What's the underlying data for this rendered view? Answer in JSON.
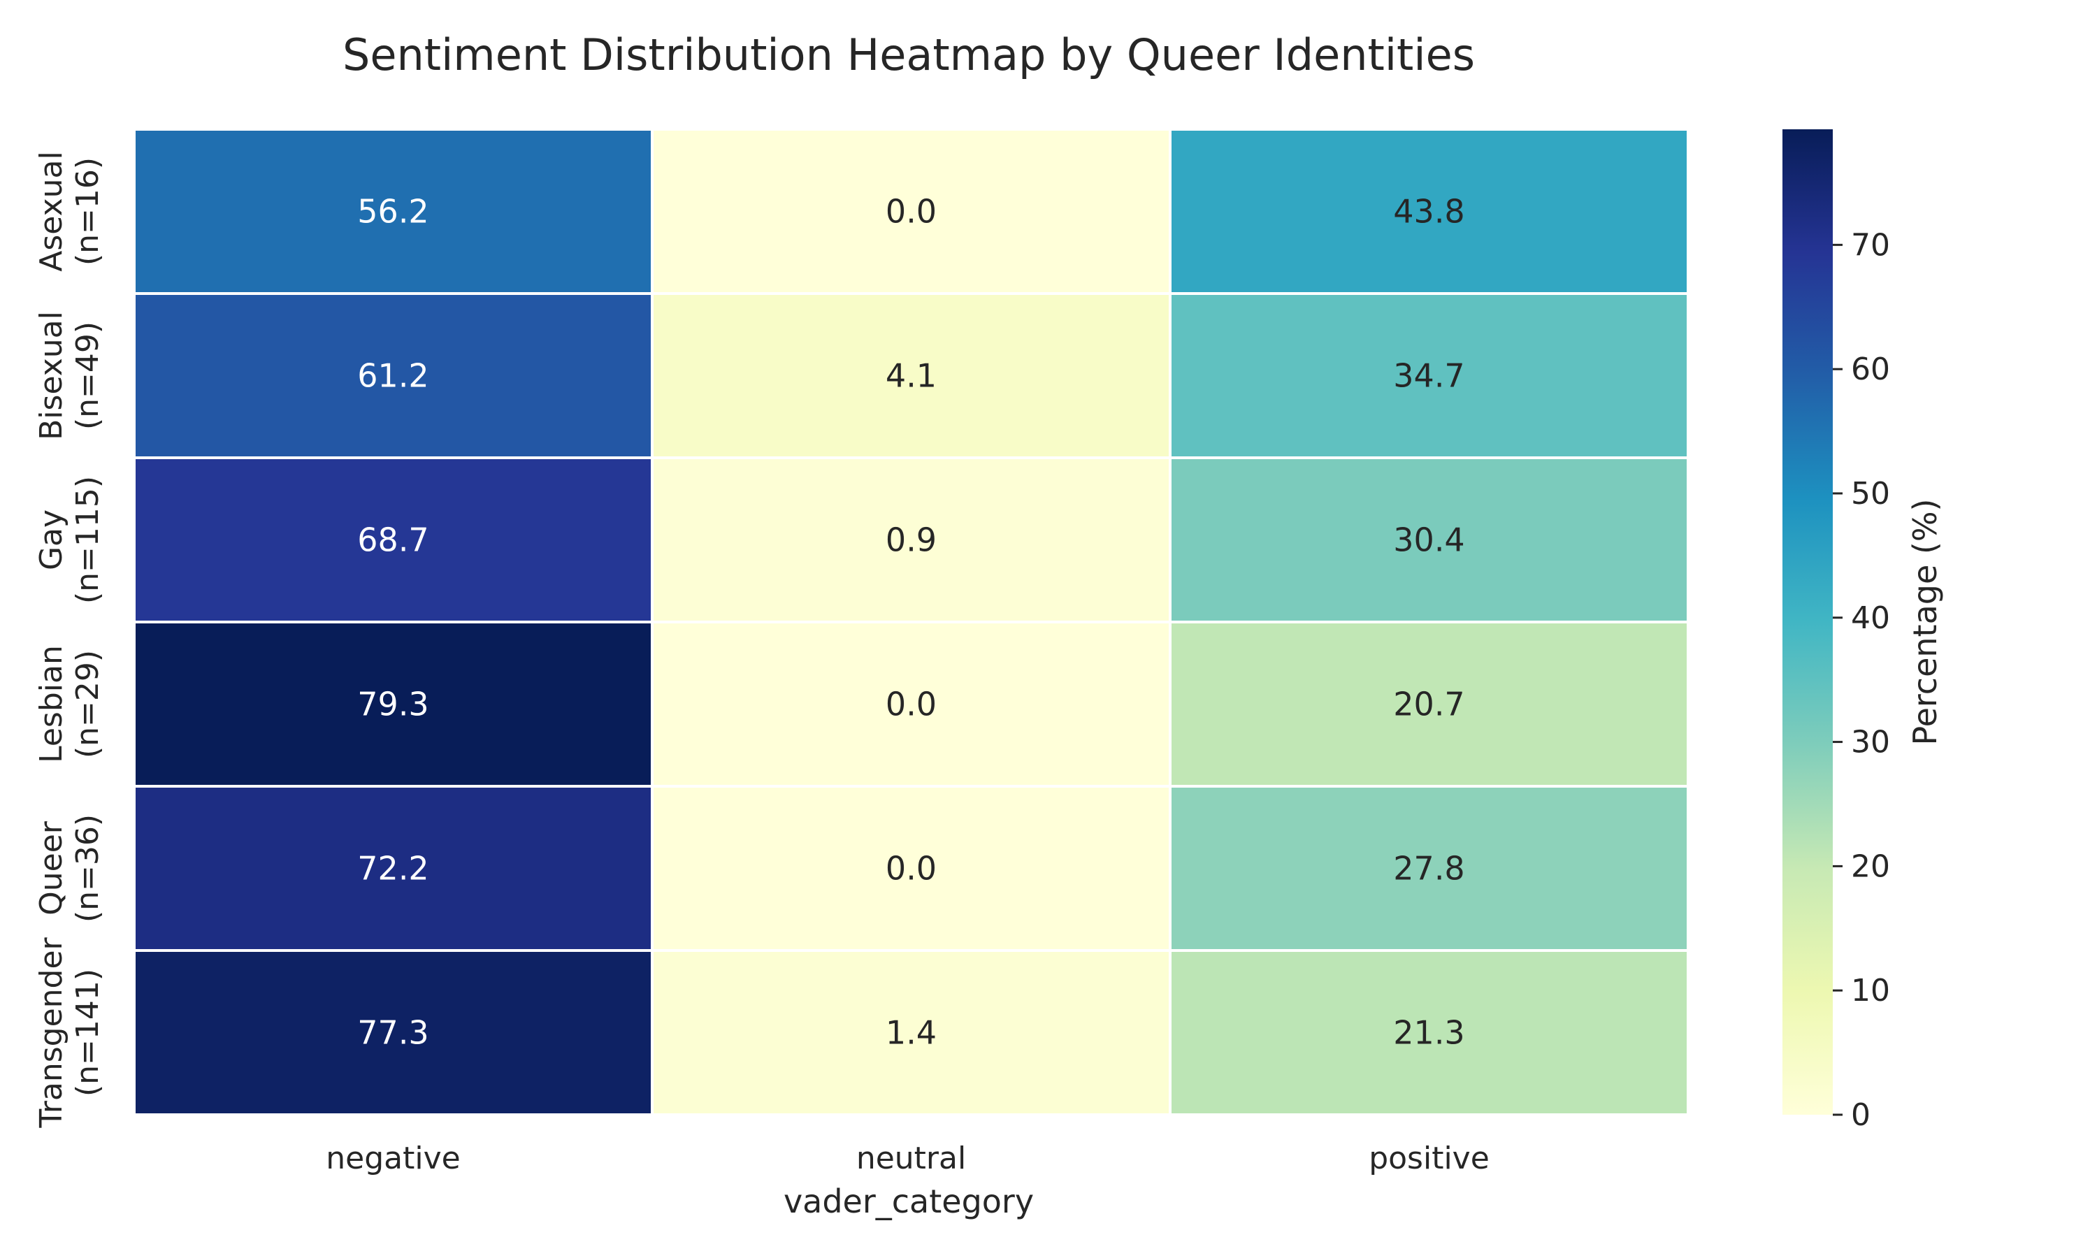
{
  "chart_data": {
    "type": "heatmap",
    "title": "Sentiment Distribution Heatmap by Queer Identities",
    "xlabel": "vader_category",
    "ylabel": "",
    "columns": [
      "negative",
      "neutral",
      "positive"
    ],
    "rows": [
      {
        "name": "Asexual",
        "n": "(n=16)"
      },
      {
        "name": "Bisexual",
        "n": "(n=49)"
      },
      {
        "name": "Gay",
        "n": "(n=115)"
      },
      {
        "name": "Lesbian",
        "n": "(n=29)"
      },
      {
        "name": "Queer",
        "n": "(n=36)"
      },
      {
        "name": "Transgender",
        "n": "(n=141)"
      }
    ],
    "values": [
      [
        56.2,
        0.0,
        43.8
      ],
      [
        61.2,
        4.1,
        34.7
      ],
      [
        68.7,
        0.9,
        30.4
      ],
      [
        79.3,
        0.0,
        20.7
      ],
      [
        72.2,
        0.0,
        27.8
      ],
      [
        77.3,
        1.4,
        21.3
      ]
    ],
    "colorbar": {
      "label": "Percentage (%)",
      "min": 0,
      "max": 79.3,
      "ticks": [
        0,
        10,
        20,
        30,
        40,
        50,
        60,
        70
      ],
      "colormap": "YlGnBu"
    },
    "grid": false,
    "legend": "right"
  }
}
